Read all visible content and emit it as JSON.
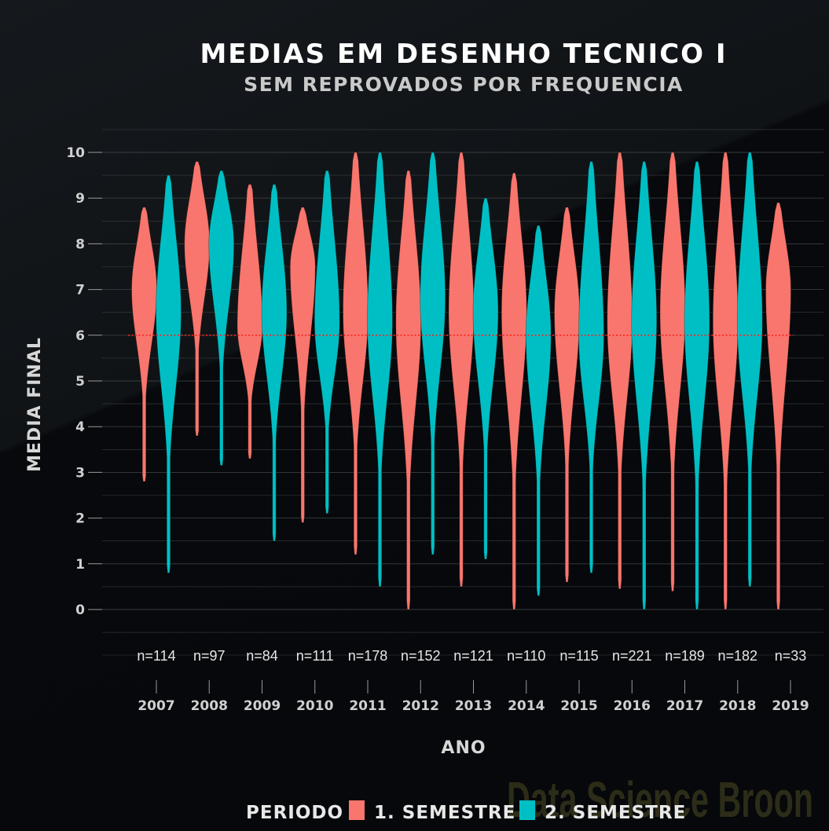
{
  "colors": {
    "background": "#07090c",
    "semester1": "#f8766d",
    "semester2": "#00bfc4",
    "threshold": "#ff2020",
    "grid": "#3a3d40"
  },
  "chart_data": {
    "type": "violin",
    "title": "MEDIAS EM DESENHO TECNICO I",
    "subtitle": "SEM REPROVADOS POR FREQUENCIA",
    "xlabel": "ANO",
    "ylabel": "MEDIA FINAL",
    "ylim": [
      0,
      10
    ],
    "yticks": [
      0,
      1,
      2,
      3,
      4,
      5,
      6,
      7,
      8,
      9,
      10
    ],
    "grid": true,
    "reference_line": {
      "y": 6,
      "style": "dotted"
    },
    "categories": [
      "2007",
      "2008",
      "2009",
      "2010",
      "2011",
      "2012",
      "2013",
      "2014",
      "2015",
      "2016",
      "2017",
      "2018",
      "2019"
    ],
    "n_labels": [
      "n=114",
      "n=97",
      "n=84",
      "n=111",
      "n=178",
      "n=152",
      "n=121",
      "n=110",
      "n=115",
      "n=221",
      "n=189",
      "n=182",
      "n=33"
    ],
    "legend": {
      "title": "PERIODO",
      "position": "bottom"
    },
    "series": [
      {
        "name": "1. SEMESTRE",
        "violins": [
          {
            "year": "2007",
            "min": 2.8,
            "max": 8.8,
            "mode": 7.0
          },
          {
            "year": "2008",
            "min": 3.8,
            "max": 9.8,
            "mode": 8.0
          },
          {
            "year": "2009",
            "min": 3.3,
            "max": 9.3,
            "mode": 6.2
          },
          {
            "year": "2010",
            "min": 1.9,
            "max": 8.8,
            "mode": 7.5
          },
          {
            "year": "2011",
            "min": 1.2,
            "max": 10.0,
            "mode": 6.5
          },
          {
            "year": "2012",
            "min": 0.0,
            "max": 9.6,
            "mode": 6.3
          },
          {
            "year": "2013",
            "min": 0.5,
            "max": 10.0,
            "mode": 6.5
          },
          {
            "year": "2014",
            "min": 0.0,
            "max": 9.55,
            "mode": 6.5
          },
          {
            "year": "2015",
            "min": 0.6,
            "max": 8.8,
            "mode": 6.5
          },
          {
            "year": "2016",
            "min": 0.45,
            "max": 10.0,
            "mode": 6.3
          },
          {
            "year": "2017",
            "min": 0.4,
            "max": 10.0,
            "mode": 6.5
          },
          {
            "year": "2018",
            "min": 0.0,
            "max": 10.0,
            "mode": 6.3
          },
          {
            "year": "2019",
            "min": 0.0,
            "max": 8.9,
            "mode": 7.0
          }
        ]
      },
      {
        "name": "2. SEMESTRE",
        "violins": [
          {
            "year": "2007",
            "min": 0.8,
            "max": 9.5,
            "mode": 6.5
          },
          {
            "year": "2008",
            "min": 3.15,
            "max": 9.6,
            "mode": 8.0
          },
          {
            "year": "2009",
            "min": 1.5,
            "max": 9.3,
            "mode": 6.5
          },
          {
            "year": "2010",
            "min": 2.1,
            "max": 9.6,
            "mode": 6.3
          },
          {
            "year": "2011",
            "min": 0.5,
            "max": 10.0,
            "mode": 6.3
          },
          {
            "year": "2012",
            "min": 1.2,
            "max": 10.0,
            "mode": 6.8
          },
          {
            "year": "2013",
            "min": 1.1,
            "max": 9.0,
            "mode": 6.5
          },
          {
            "year": "2014",
            "min": 0.3,
            "max": 8.4,
            "mode": 6.0
          },
          {
            "year": "2015",
            "min": 0.8,
            "max": 9.8,
            "mode": 6.0
          },
          {
            "year": "2016",
            "min": 0.0,
            "max": 9.8,
            "mode": 6.3
          },
          {
            "year": "2017",
            "min": 0.0,
            "max": 9.8,
            "mode": 6.3
          },
          {
            "year": "2018",
            "min": 0.5,
            "max": 10.0,
            "mode": 6.3
          }
        ]
      }
    ]
  },
  "watermark": "Data Science Broon"
}
